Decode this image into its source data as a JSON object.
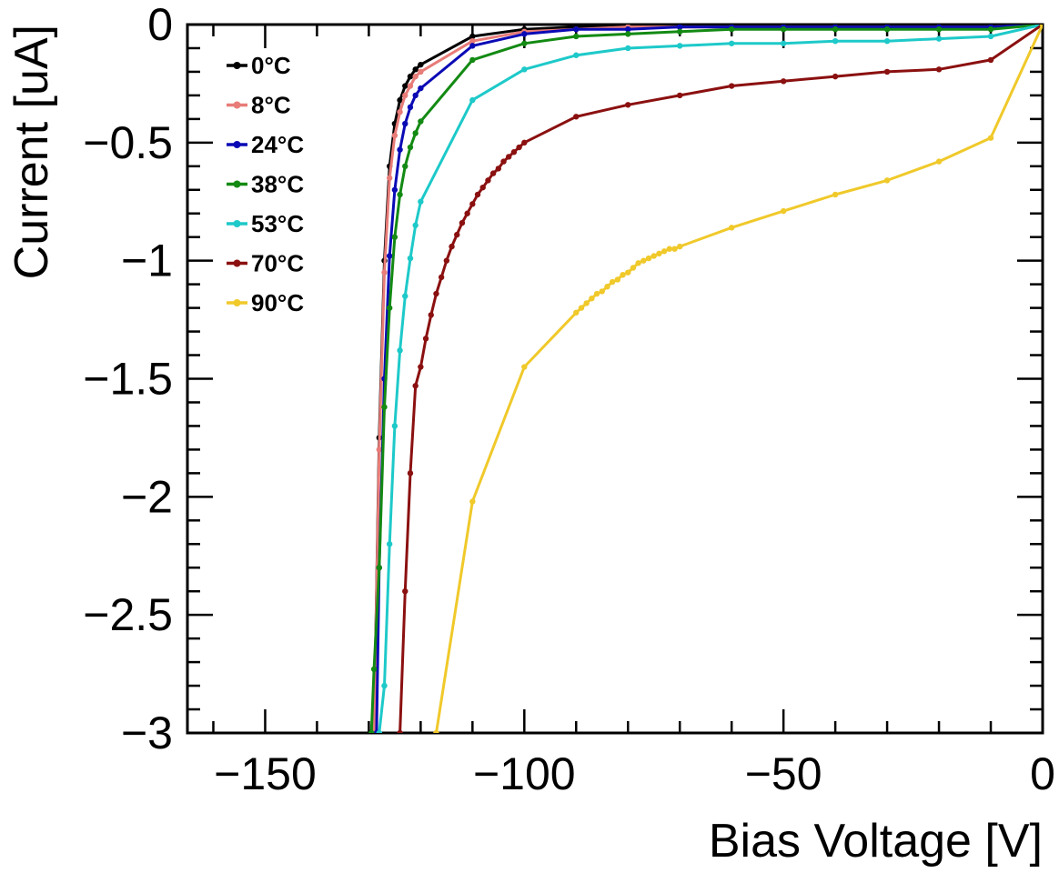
{
  "chart_data": {
    "type": "line",
    "title": "",
    "xlabel": "Bias Voltage [V]",
    "ylabel": "Current [uA]",
    "xlim": [
      -165,
      0
    ],
    "ylim": [
      -3,
      0
    ],
    "x_ticks": [
      {
        "value": -150,
        "label": "−150"
      },
      {
        "value": -100,
        "label": "−100"
      },
      {
        "value": -50,
        "label": "−50"
      },
      {
        "value": 0,
        "label": "0"
      }
    ],
    "y_ticks": [
      {
        "value": 0,
        "label": "0"
      },
      {
        "value": -0.5,
        "label": "−0.5"
      },
      {
        "value": -1,
        "label": "−1"
      },
      {
        "value": -1.5,
        "label": "−1.5"
      },
      {
        "value": -2,
        "label": "−2"
      },
      {
        "value": -2.5,
        "label": "−2.5"
      },
      {
        "value": -3,
        "label": "−3"
      }
    ],
    "grid": false,
    "legend_position": "top-left",
    "series": [
      {
        "name": "0°C",
        "color": "#000000",
        "points": [
          [
            0,
            0
          ],
          [
            -10,
            -0.01
          ],
          [
            -20,
            -0.01
          ],
          [
            -30,
            -0.01
          ],
          [
            -40,
            -0.01
          ],
          [
            -50,
            -0.01
          ],
          [
            -60,
            -0.01
          ],
          [
            -70,
            -0.01
          ],
          [
            -80,
            -0.01
          ],
          [
            -90,
            -0.01
          ],
          [
            -100,
            -0.02
          ],
          [
            -110,
            -0.05
          ],
          [
            -120,
            -0.17
          ],
          [
            -121,
            -0.19
          ],
          [
            -122,
            -0.22
          ],
          [
            -123,
            -0.26
          ],
          [
            -124,
            -0.32
          ],
          [
            -125,
            -0.42
          ],
          [
            -126,
            -0.6
          ],
          [
            -127,
            -1.0
          ],
          [
            -128,
            -1.75
          ],
          [
            -129,
            -3.0
          ]
        ]
      },
      {
        "name": "8°C",
        "color": "#e87c78",
        "points": [
          [
            0,
            0
          ],
          [
            -10,
            -0.01
          ],
          [
            -20,
            -0.01
          ],
          [
            -30,
            -0.01
          ],
          [
            -40,
            -0.01
          ],
          [
            -50,
            -0.01
          ],
          [
            -60,
            -0.01
          ],
          [
            -70,
            -0.01
          ],
          [
            -80,
            -0.01
          ],
          [
            -90,
            -0.02
          ],
          [
            -100,
            -0.03
          ],
          [
            -110,
            -0.07
          ],
          [
            -120,
            -0.2
          ],
          [
            -121,
            -0.22
          ],
          [
            -122,
            -0.26
          ],
          [
            -123,
            -0.3
          ],
          [
            -124,
            -0.37
          ],
          [
            -125,
            -0.47
          ],
          [
            -126,
            -0.65
          ],
          [
            -127,
            -1.05
          ],
          [
            -128,
            -1.8
          ],
          [
            -129,
            -3.0
          ]
        ]
      },
      {
        "name": "24°C",
        "color": "#0a0ab5",
        "points": [
          [
            0,
            0
          ],
          [
            -10,
            -0.01
          ],
          [
            -20,
            -0.01
          ],
          [
            -30,
            -0.01
          ],
          [
            -40,
            -0.01
          ],
          [
            -50,
            -0.01
          ],
          [
            -60,
            -0.01
          ],
          [
            -70,
            -0.01
          ],
          [
            -80,
            -0.02
          ],
          [
            -90,
            -0.02
          ],
          [
            -100,
            -0.04
          ],
          [
            -110,
            -0.09
          ],
          [
            -120,
            -0.27
          ],
          [
            -121,
            -0.3
          ],
          [
            -122,
            -0.35
          ],
          [
            -123,
            -0.42
          ],
          [
            -124,
            -0.53
          ],
          [
            -125,
            -0.7
          ],
          [
            -126,
            -0.98
          ],
          [
            -127,
            -1.5
          ],
          [
            -128,
            -2.3
          ],
          [
            -128.5,
            -3.0
          ]
        ]
      },
      {
        "name": "38°C",
        "color": "#138a13",
        "points": [
          [
            0,
            0
          ],
          [
            -10,
            -0.02
          ],
          [
            -20,
            -0.02
          ],
          [
            -30,
            -0.02
          ],
          [
            -40,
            -0.02
          ],
          [
            -50,
            -0.02
          ],
          [
            -60,
            -0.02
          ],
          [
            -70,
            -0.03
          ],
          [
            -80,
            -0.04
          ],
          [
            -90,
            -0.05
          ],
          [
            -100,
            -0.08
          ],
          [
            -110,
            -0.15
          ],
          [
            -120,
            -0.41
          ],
          [
            -121,
            -0.46
          ],
          [
            -122,
            -0.52
          ],
          [
            -123,
            -0.6
          ],
          [
            -124,
            -0.72
          ],
          [
            -125,
            -0.9
          ],
          [
            -126,
            -1.2
          ],
          [
            -127,
            -1.62
          ],
          [
            -128,
            -2.3
          ],
          [
            -129,
            -2.73
          ],
          [
            -129.5,
            -3.0
          ]
        ]
      },
      {
        "name": "53°C",
        "color": "#1ec9c9",
        "points": [
          [
            0,
            0
          ],
          [
            -10,
            -0.05
          ],
          [
            -20,
            -0.06
          ],
          [
            -30,
            -0.07
          ],
          [
            -40,
            -0.07
          ],
          [
            -50,
            -0.08
          ],
          [
            -60,
            -0.08
          ],
          [
            -70,
            -0.09
          ],
          [
            -80,
            -0.1
          ],
          [
            -90,
            -0.13
          ],
          [
            -100,
            -0.19
          ],
          [
            -110,
            -0.32
          ],
          [
            -120,
            -0.75
          ],
          [
            -121,
            -0.85
          ],
          [
            -122,
            -0.99
          ],
          [
            -123,
            -1.15
          ],
          [
            -124,
            -1.38
          ],
          [
            -125,
            -1.7
          ],
          [
            -126,
            -2.2
          ],
          [
            -127,
            -2.8
          ],
          [
            -128,
            -3.0
          ]
        ]
      },
      {
        "name": "70°C",
        "color": "#8b1010",
        "points": [
          [
            0,
            0
          ],
          [
            -10,
            -0.15
          ],
          [
            -20,
            -0.19
          ],
          [
            -30,
            -0.2
          ],
          [
            -40,
            -0.22
          ],
          [
            -50,
            -0.24
          ],
          [
            -60,
            -0.26
          ],
          [
            -70,
            -0.3
          ],
          [
            -80,
            -0.34
          ],
          [
            -90,
            -0.39
          ],
          [
            -100,
            -0.5
          ],
          [
            -101,
            -0.52
          ],
          [
            -102,
            -0.54
          ],
          [
            -103,
            -0.56
          ],
          [
            -104,
            -0.58
          ],
          [
            -105,
            -0.61
          ],
          [
            -106,
            -0.63
          ],
          [
            -107,
            -0.66
          ],
          [
            -108,
            -0.69
          ],
          [
            -109,
            -0.72
          ],
          [
            -110,
            -0.76
          ],
          [
            -111,
            -0.8
          ],
          [
            -112,
            -0.84
          ],
          [
            -113,
            -0.89
          ],
          [
            -114,
            -0.94
          ],
          [
            -115,
            -1.0
          ],
          [
            -116,
            -1.07
          ],
          [
            -117,
            -1.14
          ],
          [
            -118,
            -1.23
          ],
          [
            -119,
            -1.33
          ],
          [
            -120,
            -1.45
          ],
          [
            -121,
            -1.53
          ],
          [
            -122,
            -1.9
          ],
          [
            -123,
            -2.4
          ],
          [
            -124,
            -3.0
          ]
        ]
      },
      {
        "name": "90°C",
        "color": "#f0c92a",
        "points": [
          [
            0,
            0
          ],
          [
            -10,
            -0.48
          ],
          [
            -20,
            -0.58
          ],
          [
            -30,
            -0.66
          ],
          [
            -40,
            -0.72
          ],
          [
            -50,
            -0.79
          ],
          [
            -60,
            -0.86
          ],
          [
            -70,
            -0.94
          ],
          [
            -71,
            -0.95
          ],
          [
            -72,
            -0.95
          ],
          [
            -73,
            -0.96
          ],
          [
            -74,
            -0.97
          ],
          [
            -75,
            -0.98
          ],
          [
            -76,
            -0.99
          ],
          [
            -77,
            -1.0
          ],
          [
            -78,
            -1.01
          ],
          [
            -79,
            -1.03
          ],
          [
            -80,
            -1.05
          ],
          [
            -81,
            -1.06
          ],
          [
            -82,
            -1.08
          ],
          [
            -83,
            -1.09
          ],
          [
            -84,
            -1.11
          ],
          [
            -85,
            -1.13
          ],
          [
            -86,
            -1.14
          ],
          [
            -87,
            -1.16
          ],
          [
            -88,
            -1.18
          ],
          [
            -89,
            -1.2
          ],
          [
            -90,
            -1.22
          ],
          [
            -100,
            -1.45
          ],
          [
            -110,
            -2.02
          ],
          [
            -117,
            -3.0
          ]
        ]
      }
    ]
  }
}
